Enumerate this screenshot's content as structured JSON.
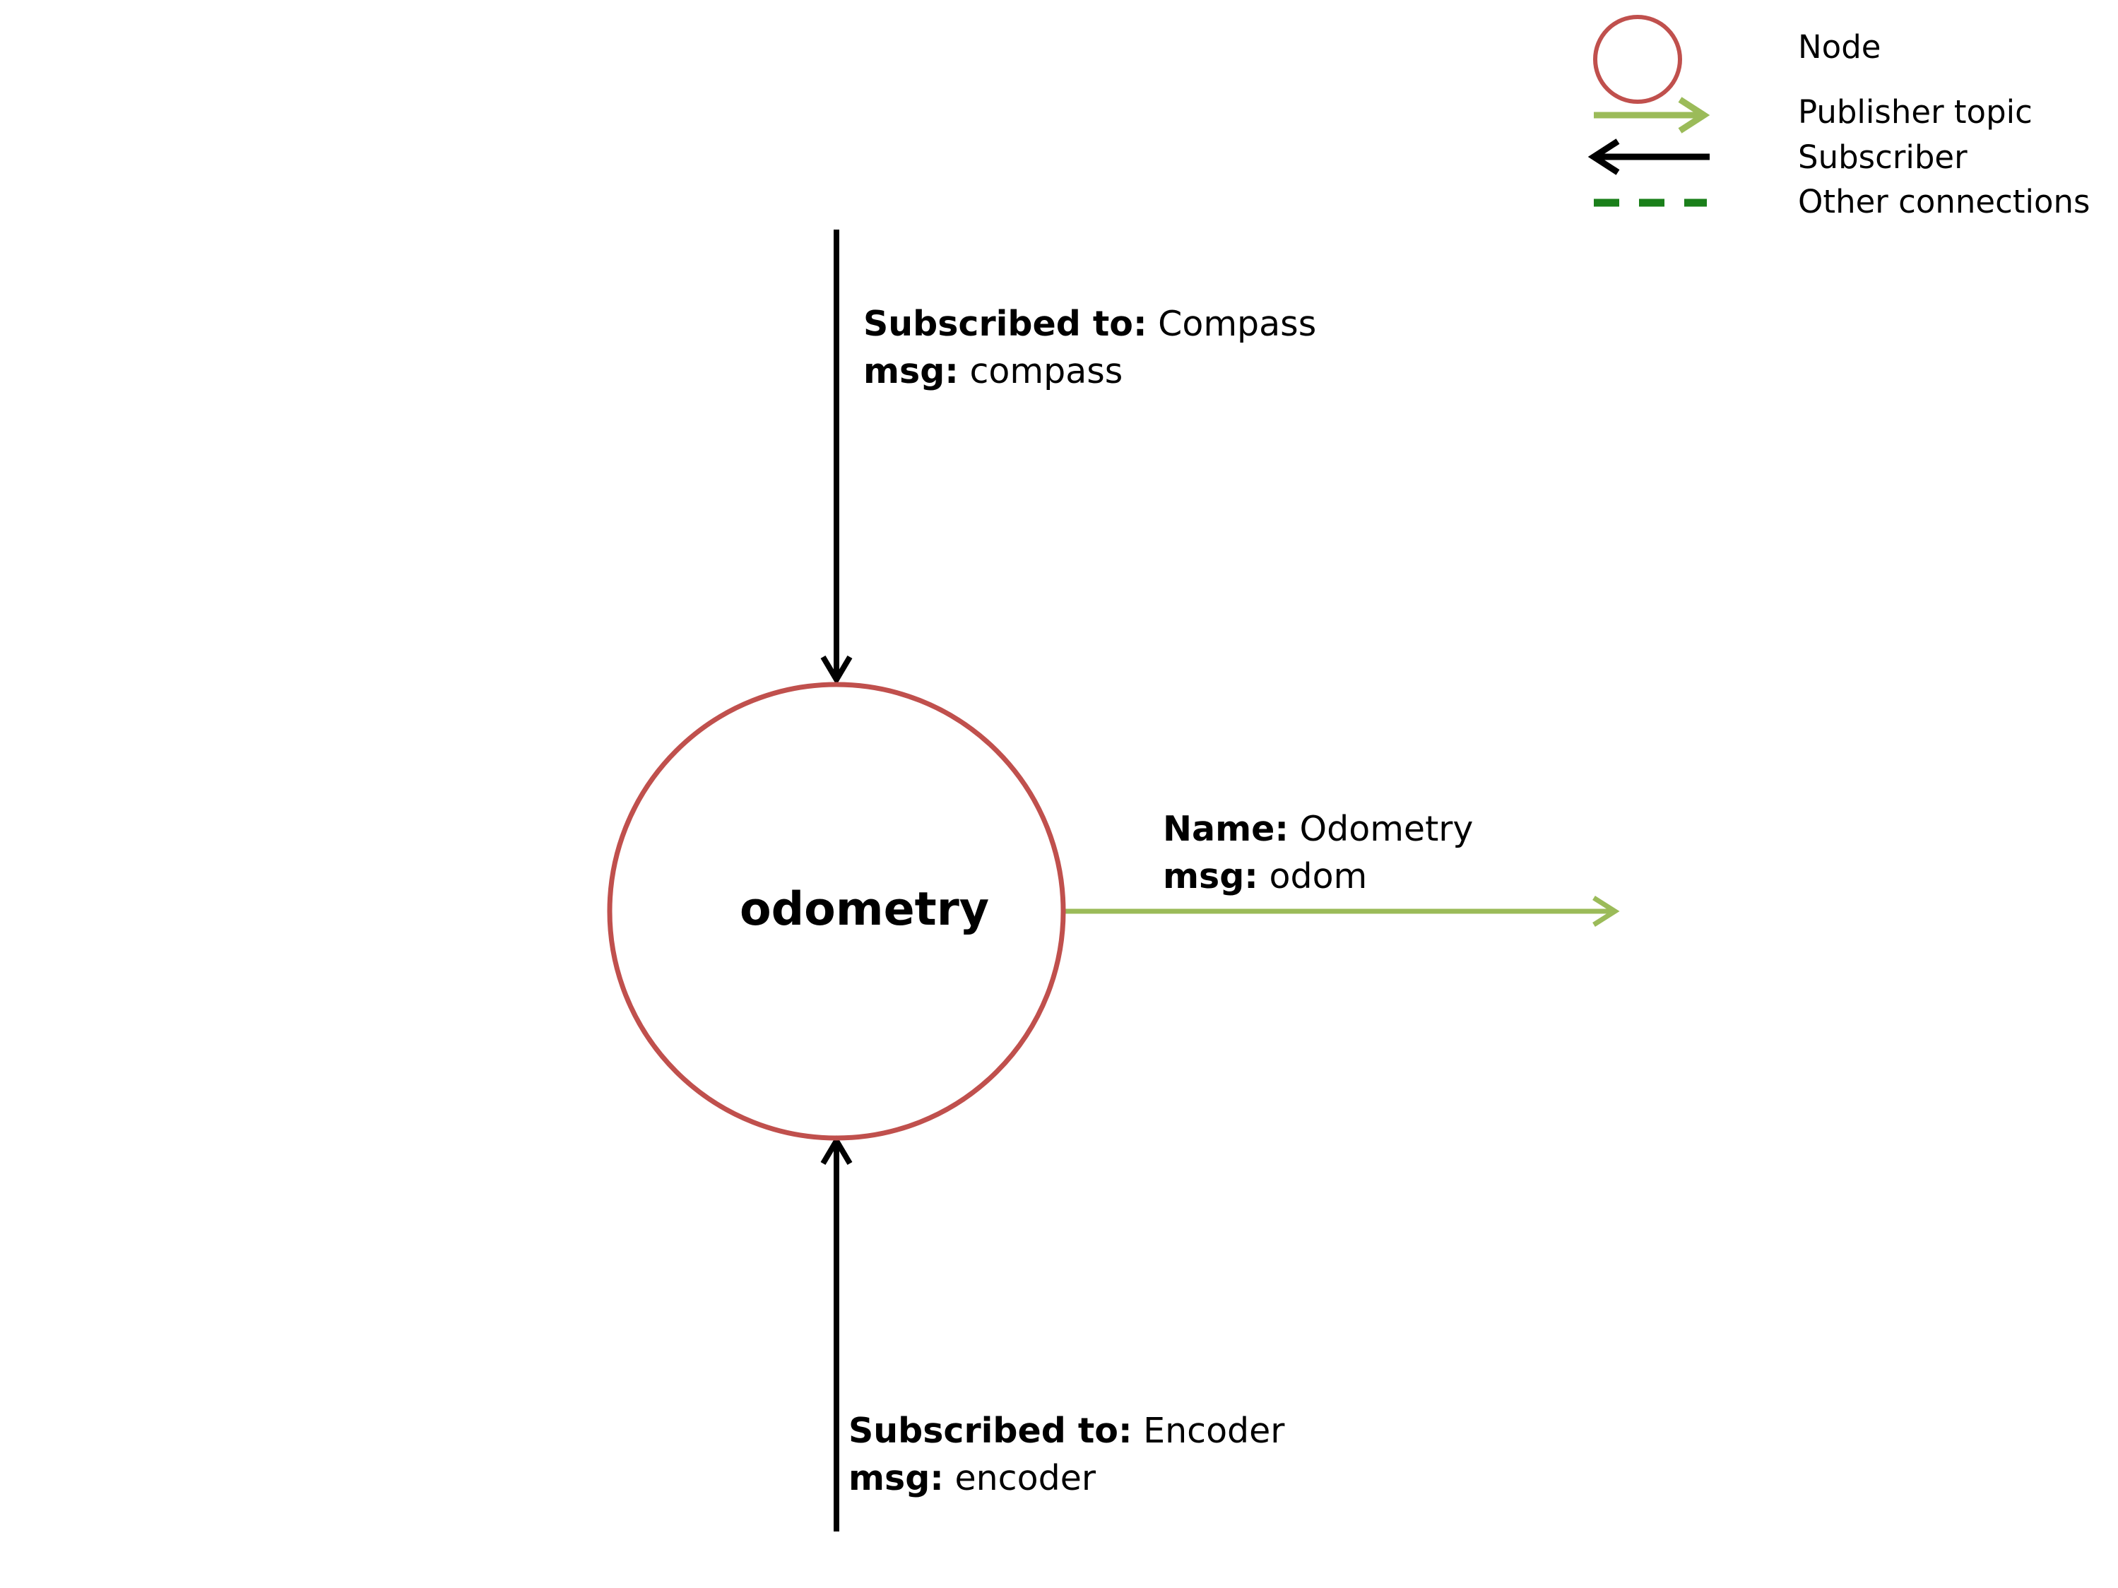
{
  "colors": {
    "node_stroke": "#c0504d",
    "publisher": "#9bbb59",
    "subscriber": "#000000",
    "other": "#1a7f1a"
  },
  "legend": {
    "node": "Node",
    "publisher": "Publisher topic",
    "subscriber": "Subscriber",
    "other": "Other connections"
  },
  "node": {
    "name": "odometry"
  },
  "edges": {
    "compass": {
      "key1": "Subscribed to:",
      "val1": " Compass",
      "key2": "msg:",
      "val2": " compass"
    },
    "odom": {
      "key1": "Name:",
      "val1": " Odometry",
      "key2": "msg:",
      "val2": " odom"
    },
    "encoder": {
      "key1": "Subscribed to:",
      "val1": " Encoder",
      "key2": "msg:",
      "val2": " encoder"
    }
  }
}
